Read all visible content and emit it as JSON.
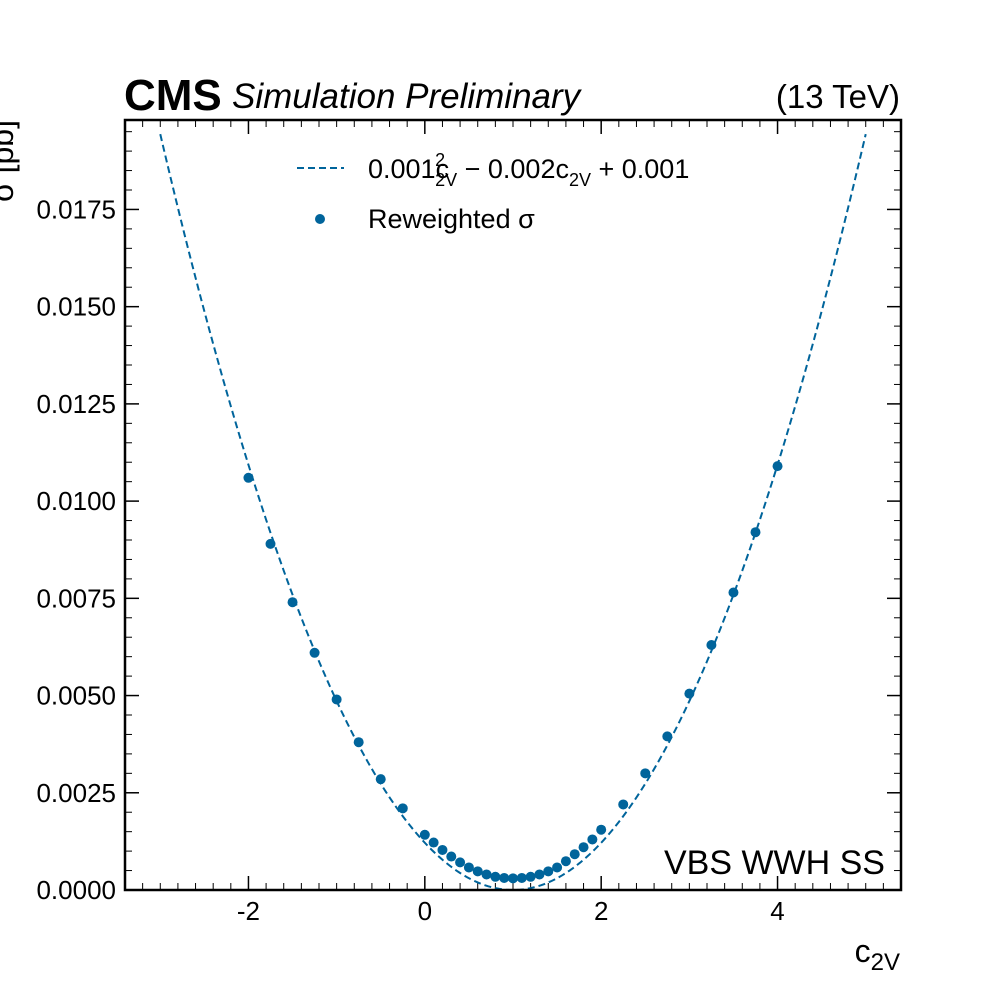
{
  "header": {
    "brand": "CMS",
    "subtitle": "Simulation Preliminary",
    "energy": "(13 TeV)"
  },
  "annotation": "VBS WWH SS",
  "colors": {
    "series": "#00649b",
    "axis": "#000000"
  },
  "chart_data": {
    "type": "scatter",
    "xlabel": {
      "main": "c",
      "sub": "2V"
    },
    "ylabel": "σ [pb]",
    "xlim": [
      -3.4,
      5.4
    ],
    "ylim": [
      0,
      0.0198
    ],
    "xticks": [
      -2,
      0,
      2,
      4
    ],
    "xtick_labels": [
      "-2",
      "0",
      "2",
      "4"
    ],
    "yticks": [
      0,
      0.0025,
      0.005,
      0.0075,
      0.01,
      0.0125,
      0.015,
      0.0175
    ],
    "ytick_labels": [
      "0.0000",
      "0.0025",
      "0.0050",
      "0.0075",
      "0.0100",
      "0.0125",
      "0.0150",
      "0.0175"
    ],
    "legend": {
      "position": "top-center",
      "fit_label": {
        "p1": "0.001c",
        "sup1": "2",
        "sub1": "2V",
        "p2": " − 0.002c",
        "sub2": "2V",
        "p3": " + 0.001"
      },
      "points_label": "Reweighted σ"
    },
    "fit": {
      "name": "fit",
      "coefficients": [
        0.001,
        -0.002,
        0.001
      ],
      "x_range": [
        -3,
        5
      ]
    },
    "series": [
      {
        "name": "Reweighted σ",
        "x": [
          -2,
          -1.75,
          -1.5,
          -1.25,
          -1,
          -0.75,
          -0.5,
          -0.25,
          0,
          0.1,
          0.2,
          0.3,
          0.4,
          0.5,
          0.6,
          0.7,
          0.8,
          0.9,
          1.0,
          1.1,
          1.2,
          1.3,
          1.4,
          1.5,
          1.6,
          1.7,
          1.8,
          1.9,
          2.0,
          2.25,
          2.5,
          2.75,
          3.0,
          3.25,
          3.5,
          3.75,
          4.0
        ],
        "y": [
          0.0106,
          0.0089,
          0.0074,
          0.0061,
          0.0049,
          0.0038,
          0.00285,
          0.0021,
          0.00142,
          0.00122,
          0.00103,
          0.00086,
          0.00071,
          0.00058,
          0.00048,
          0.0004,
          0.00034,
          0.00031,
          0.0003,
          0.00031,
          0.00034,
          0.0004,
          0.00048,
          0.00058,
          0.00074,
          0.00092,
          0.0011,
          0.0013,
          0.00155,
          0.0022,
          0.003,
          0.00395,
          0.00505,
          0.0063,
          0.00765,
          0.0092,
          0.0109
        ]
      }
    ]
  }
}
